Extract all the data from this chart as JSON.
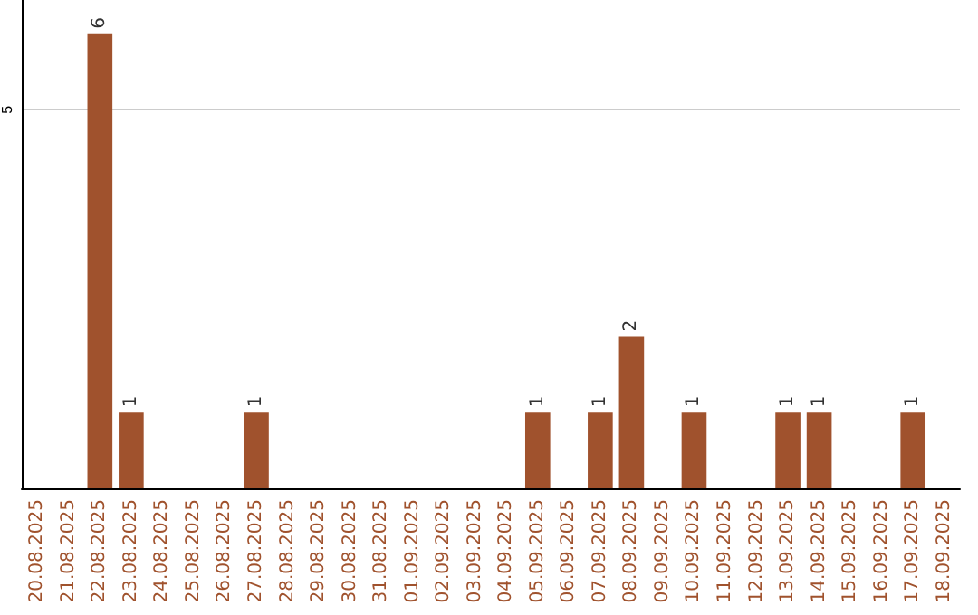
{
  "chart_data": {
    "type": "bar",
    "categories": [
      "20.08.2025",
      "21.08.2025",
      "22.08.2025",
      "23.08.2025",
      "24.08.2025",
      "25.08.2025",
      "26.08.2025",
      "27.08.2025",
      "28.08.2025",
      "29.08.2025",
      "30.08.2025",
      "31.08.2025",
      "01.09.2025",
      "02.09.2025",
      "03.09.2025",
      "04.09.2025",
      "05.09.2025",
      "06.09.2025",
      "07.09.2025",
      "08.09.2025",
      "09.09.2025",
      "10.09.2025",
      "11.09.2025",
      "12.09.2025",
      "13.09.2025",
      "14.09.2025",
      "15.09.2025",
      "16.09.2025",
      "17.09.2025",
      "18.09.2025"
    ],
    "values": [
      0,
      0,
      6,
      1,
      0,
      0,
      0,
      1,
      0,
      0,
      0,
      0,
      0,
      0,
      0,
      0,
      1,
      0,
      1,
      2,
      0,
      1,
      0,
      0,
      1,
      1,
      0,
      0,
      1,
      0
    ],
    "value_labels": [
      null,
      null,
      "6",
      "1",
      null,
      null,
      null,
      "1",
      null,
      null,
      null,
      null,
      null,
      null,
      null,
      null,
      "1",
      null,
      "1",
      "2",
      null,
      "1",
      null,
      null,
      "1",
      "1",
      null,
      null,
      "1",
      null
    ],
    "color": "#a0522d",
    "ylim": [
      0,
      6.45
    ],
    "yticks": [
      {
        "value": 0,
        "label": null
      },
      5
    ],
    "grid": "y"
  }
}
